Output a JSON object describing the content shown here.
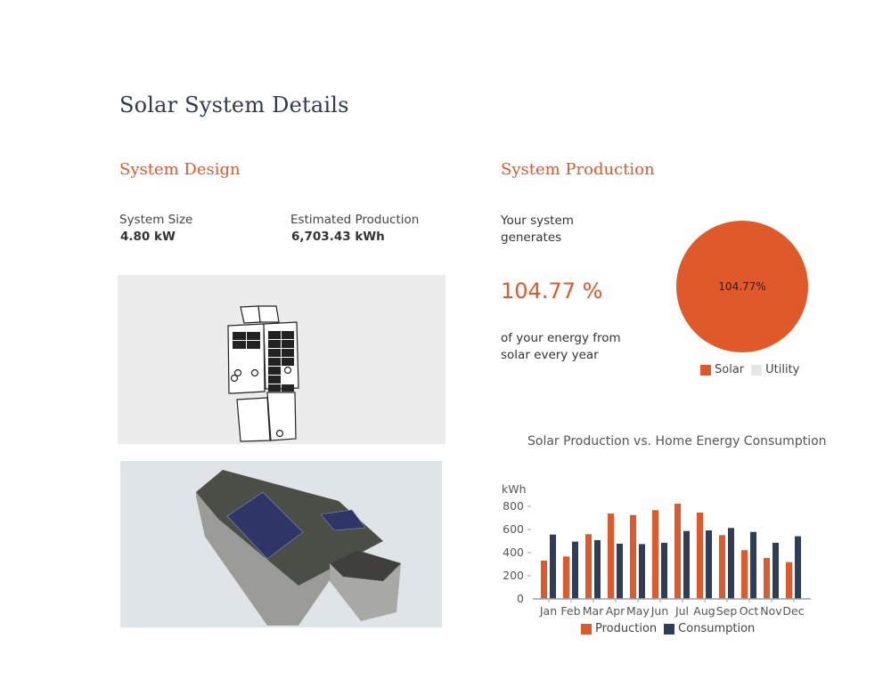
{
  "page": {
    "title": "Solar System Details"
  },
  "design": {
    "title": "System Design",
    "system_size_label": "System Size",
    "system_size_value": "4.80 kW",
    "est_production_label": "Estimated Production",
    "est_production_value": "6,703.43 kWh"
  },
  "production": {
    "title": "System Production",
    "intro_line1": "Your system",
    "intro_line2": "generates",
    "percent": "104.77 %",
    "outro_line1": "of your energy from",
    "outro_line2": "solar every year",
    "pie_label": "104.77%",
    "legend": [
      {
        "label": "Solar",
        "color": "#e0592a"
      },
      {
        "label": "Utility",
        "color": "#e6e6e6"
      }
    ]
  },
  "colors": {
    "accent": "#e0592a",
    "navy": "#2e3a52",
    "consumption": "#2f3d58"
  },
  "chart_data": [
    {
      "type": "pie",
      "title": "",
      "categories": [
        "Solar",
        "Utility"
      ],
      "values": [
        104.77,
        0
      ],
      "data_labels": [
        "104.77%"
      ],
      "legend_position": "bottom"
    },
    {
      "type": "bar",
      "title": "Solar Production vs. Home Energy Consumption",
      "xlabel": "",
      "ylabel": "kWh",
      "ylim": [
        0,
        800
      ],
      "yticks": [
        0,
        200,
        400,
        600,
        800
      ],
      "grid": false,
      "legend_position": "bottom",
      "categories": [
        "Jan",
        "Feb",
        "Mar",
        "Apr",
        "May",
        "Jun",
        "Jul",
        "Aug",
        "Sep",
        "Oct",
        "Nov",
        "Dec"
      ],
      "series": [
        {
          "name": "Production",
          "color": "#e0592a",
          "values": [
            331,
            367,
            559,
            738,
            725,
            767,
            823,
            746,
            551,
            421,
            354,
            318
          ]
        },
        {
          "name": "Consumption",
          "color": "#2f3d58",
          "values": [
            556,
            495,
            508,
            477,
            474,
            485,
            587,
            592,
            613,
            579,
            485,
            541
          ]
        }
      ]
    }
  ]
}
